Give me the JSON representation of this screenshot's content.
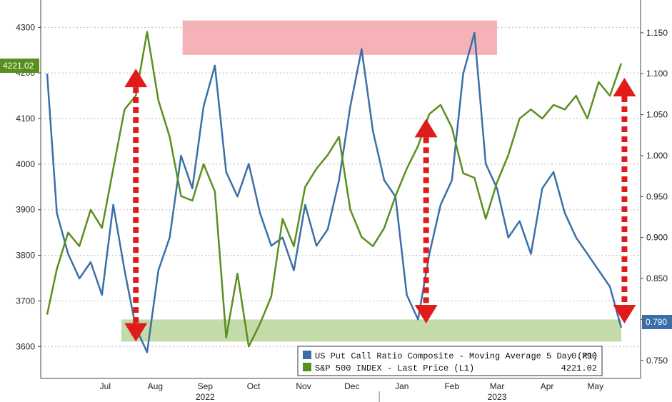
{
  "chart_data": {
    "type": "line",
    "x": [
      "2022-06-09",
      "2022-06-15",
      "2022-06-22",
      "2022-06-29",
      "2022-07-06",
      "2022-07-13",
      "2022-07-20",
      "2022-07-27",
      "2022-08-03",
      "2022-08-10",
      "2022-08-17",
      "2022-08-24",
      "2022-08-31",
      "2022-09-07",
      "2022-09-14",
      "2022-09-21",
      "2022-09-28",
      "2022-10-05",
      "2022-10-12",
      "2022-10-19",
      "2022-10-26",
      "2022-11-02",
      "2022-11-09",
      "2022-11-16",
      "2022-11-23",
      "2022-11-30",
      "2022-12-07",
      "2022-12-14",
      "2022-12-21",
      "2022-12-28",
      "2023-01-04",
      "2023-01-11",
      "2023-01-18",
      "2023-01-25",
      "2023-02-01",
      "2023-02-08",
      "2023-02-15",
      "2023-02-22",
      "2023-03-01",
      "2023-03-08",
      "2023-03-15",
      "2023-03-22",
      "2023-03-29",
      "2023-04-05",
      "2023-04-12",
      "2023-04-19",
      "2023-04-26",
      "2023-05-03",
      "2023-05-10",
      "2023-05-17",
      "2023-05-24",
      "2023-05-31"
    ],
    "series": [
      {
        "name": "US Put Call Ratio Composite - Moving Average 5 Day (R1)",
        "axis": "right",
        "color": "#3a6fa8",
        "values": [
          1.1,
          0.93,
          0.88,
          0.85,
          0.87,
          0.83,
          0.94,
          0.86,
          0.79,
          0.76,
          0.86,
          0.9,
          1.0,
          0.96,
          1.06,
          1.11,
          0.98,
          0.95,
          0.99,
          0.93,
          0.89,
          0.9,
          0.86,
          0.94,
          0.89,
          0.91,
          0.97,
          1.06,
          1.13,
          1.03,
          0.97,
          0.95,
          0.83,
          0.8,
          0.88,
          0.94,
          0.97,
          1.1,
          1.15,
          0.99,
          0.96,
          0.9,
          0.92,
          0.88,
          0.96,
          0.98,
          0.93,
          0.9,
          0.88,
          0.86,
          0.84,
          0.79
        ]
      },
      {
        "name": "S&P 500 INDEX - Last Price (L1)",
        "axis": "left",
        "color": "#5a8f1f",
        "values": [
          3670,
          3770,
          3850,
          3820,
          3900,
          3860,
          3990,
          4120,
          4150,
          4290,
          4140,
          4060,
          3930,
          3920,
          4000,
          3940,
          3620,
          3760,
          3600,
          3650,
          3710,
          3880,
          3820,
          3950,
          3990,
          4020,
          4060,
          3900,
          3840,
          3820,
          3860,
          3930,
          3990,
          4040,
          4110,
          4130,
          4080,
          3980,
          3970,
          3880,
          3960,
          4020,
          4100,
          4120,
          4100,
          4130,
          4120,
          4150,
          4100,
          4180,
          4150,
          4221
        ]
      }
    ],
    "yleft": {
      "ylim": [
        3530,
        4360
      ],
      "ticks": [
        "4300",
        "4200",
        "4100",
        "4000",
        "3900",
        "3800",
        "3700",
        "3600"
      ]
    },
    "yright": {
      "ylim": [
        0.728,
        1.19
      ],
      "ticks": [
        "1.150",
        "1.100",
        "1.050",
        "1.000",
        "0.950",
        "0.900",
        "0.850",
        "0.800",
        "0.750"
      ]
    },
    "months": [
      "Jul",
      "Aug",
      "Sep",
      "Oct",
      "Nov",
      "Dec",
      "Jan",
      "Feb",
      "Mar",
      "Apr",
      "May"
    ],
    "years": [
      "2022",
      "2023"
    ],
    "left_badge": "4221.02",
    "right_badge": "0.790",
    "legend": [
      {
        "label": "US Put Call Ratio Composite - Moving Average 5 Day (R1)",
        "value": "0.790",
        "color": "#3a6fa8"
      },
      {
        "label": "S&P 500 INDEX - Last Price (L1)",
        "value": "4221.02",
        "color": "#5a8f1f"
      }
    ],
    "bands": [
      {
        "name": "high-ratio-band",
        "x_range": [
          "2022-09-01",
          "2023-03-15"
        ],
        "y_range": [
          1.123,
          1.165
        ],
        "axis": "right",
        "color": "#f4a6aa"
      },
      {
        "name": "low-ratio-band",
        "x_range": [
          "2022-07-25",
          "2023-05-31"
        ],
        "y_range": [
          0.773,
          0.8
        ],
        "axis": "right",
        "color": "#b7d59a"
      }
    ],
    "arrows": [
      {
        "x": "2022-08-03",
        "y_from": 4200,
        "y_to": 3620
      },
      {
        "x": "2023-01-30",
        "y_from": 4090,
        "y_to": 3660
      },
      {
        "x": "2023-06-02",
        "y_from": 4180,
        "y_to": 3660
      }
    ]
  }
}
